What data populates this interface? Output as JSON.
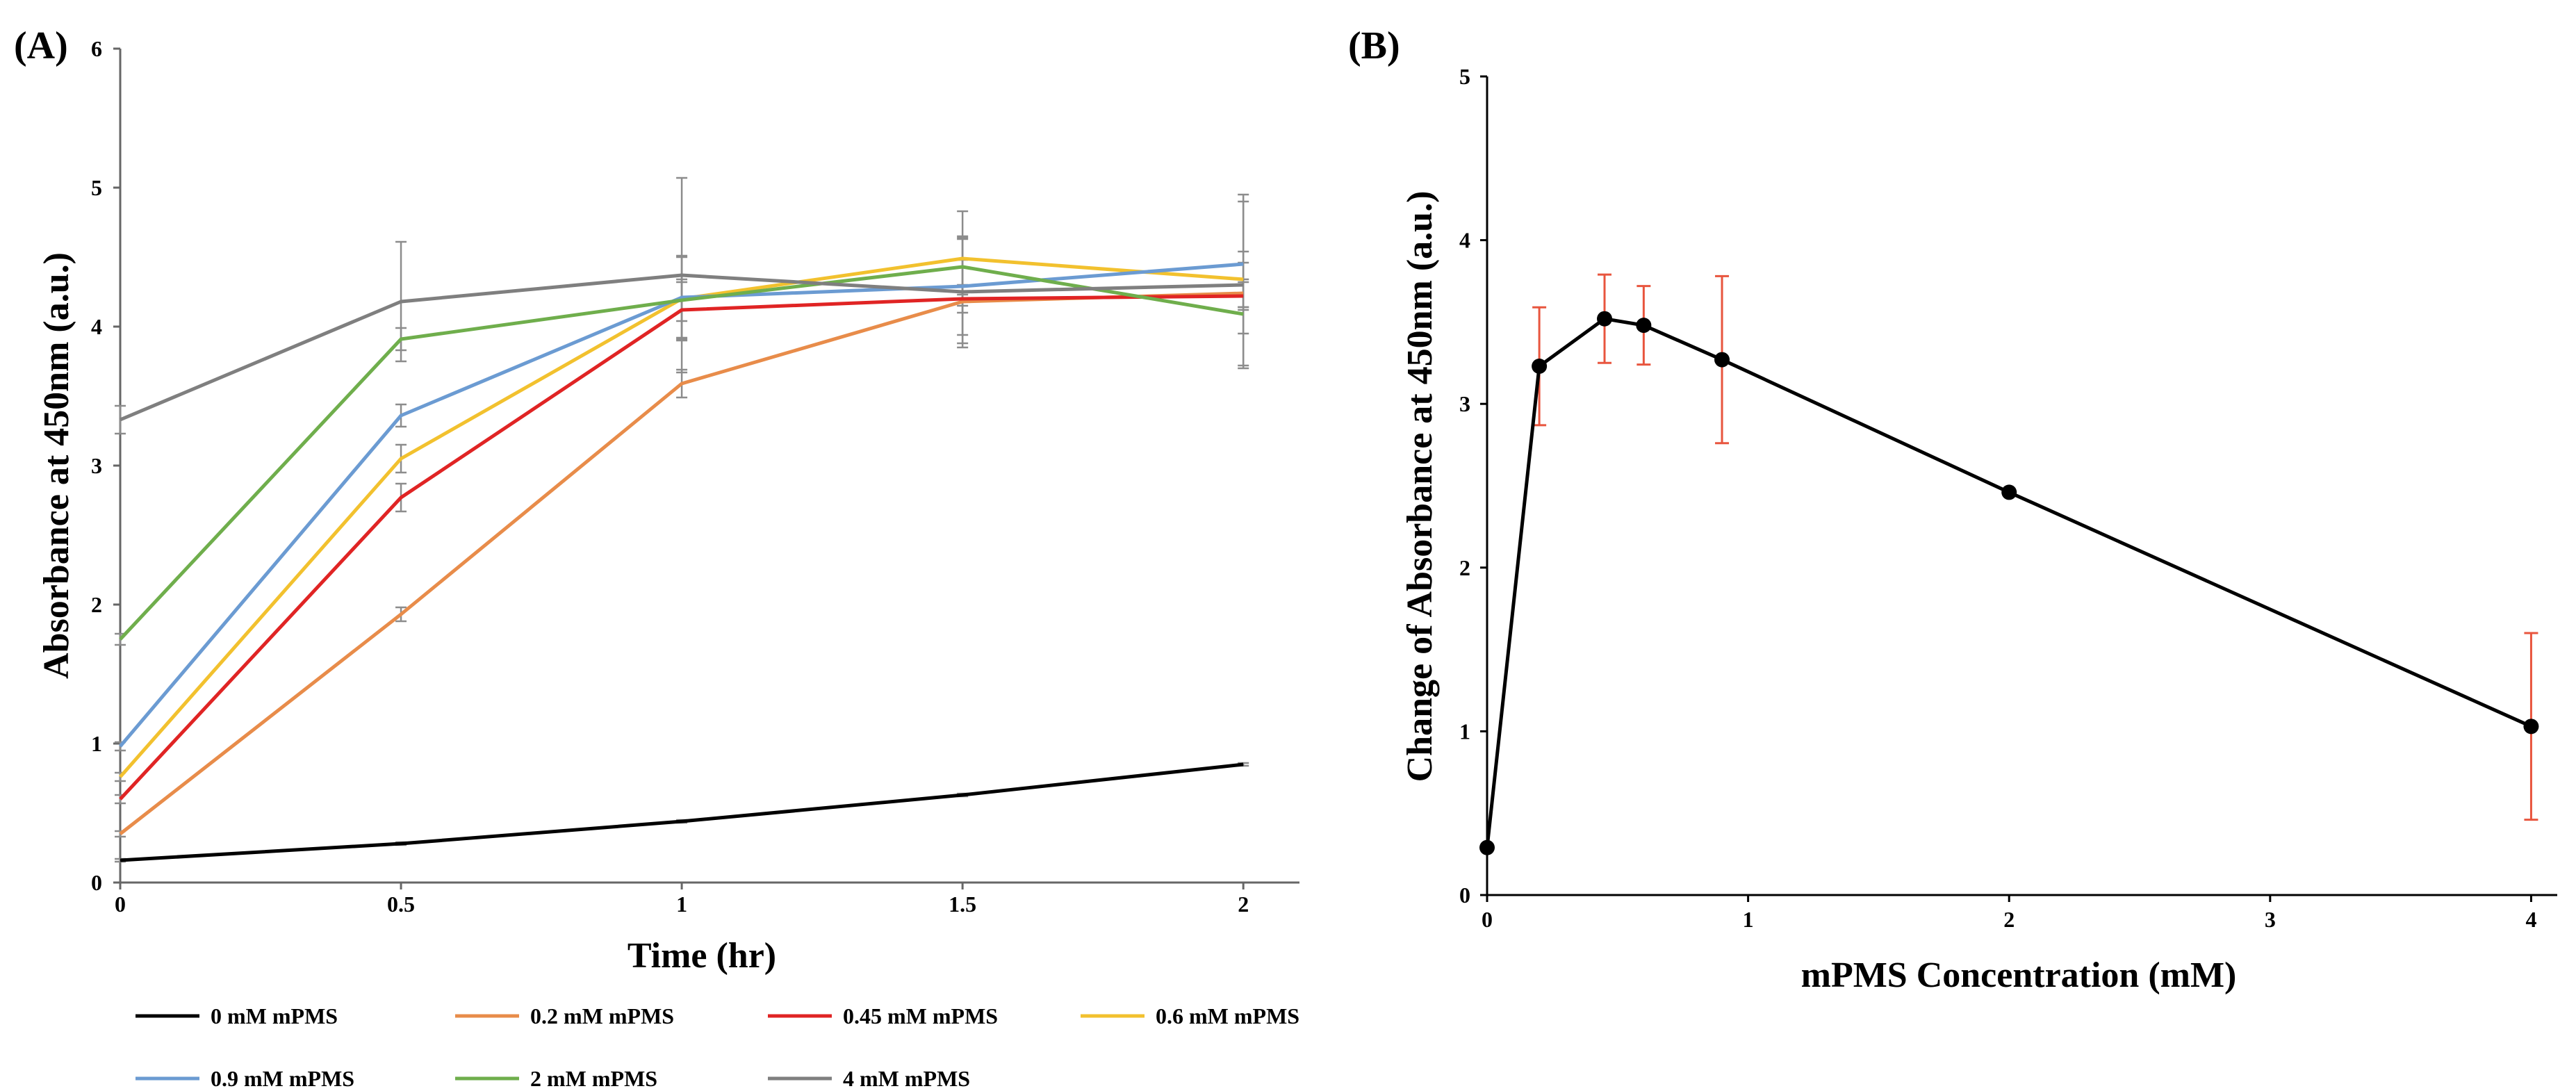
{
  "chart_data": [
    {
      "panel_label": "(A)",
      "type": "line",
      "xlabel": "Time (hr)",
      "ylabel": "Absorbance at 450nm (a.u.)",
      "x": [
        0,
        0.5,
        1,
        1.5,
        2
      ],
      "x_tick_labels": [
        "0",
        "0.5",
        "1",
        "1.5",
        "2"
      ],
      "xlim": [
        0,
        2.1
      ],
      "ylim": [
        0,
        6
      ],
      "y_ticks": [
        0,
        1,
        2,
        3,
        4,
        5,
        6
      ],
      "y_tick_labels": [
        "0",
        "1",
        "2",
        "3",
        "4",
        "5",
        "6"
      ],
      "grid": false,
      "legend_position": "bottom",
      "series": [
        {
          "name": "0 mM mPMS",
          "color": "#000000",
          "values": [
            0.16,
            0.28,
            0.44,
            0.63,
            0.85
          ],
          "errors": [
            0.01,
            0.01,
            0.01,
            0.01,
            0.01
          ]
        },
        {
          "name": "0.2 mM mPMS",
          "color": "#e88c4a",
          "values": [
            0.35,
            1.93,
            3.59,
            4.18,
            4.24
          ],
          "errors": [
            0.02,
            0.05,
            0.1,
            0.3,
            0.1
          ]
        },
        {
          "name": "0.45 mM mPMS",
          "color": "#e02424",
          "values": [
            0.6,
            2.77,
            4.12,
            4.2,
            4.22
          ],
          "errors": [
            0.03,
            0.1,
            0.2,
            0.1,
            0.1
          ]
        },
        {
          "name": "0.6 mM mPMS",
          "color": "#f2c12e",
          "values": [
            0.76,
            3.05,
            4.2,
            4.49,
            4.34
          ],
          "errors": [
            0.03,
            0.1,
            0.3,
            0.34,
            0.2
          ]
        },
        {
          "name": "0.9 mM mPMS",
          "color": "#6b9bd2",
          "values": [
            0.98,
            3.36,
            4.21,
            4.29,
            4.45
          ],
          "errors": [
            0.03,
            0.08,
            0.3,
            0.35,
            0.5
          ]
        },
        {
          "name": "2 mM mPMS",
          "color": "#6fae4c",
          "values": [
            1.75,
            3.91,
            4.19,
            4.43,
            4.09
          ],
          "errors": [
            0.04,
            0.08,
            0.15,
            0.2,
            0.37
          ]
        },
        {
          "name": "4 mM mPMS",
          "color": "#7f7f7f",
          "values": [
            3.33,
            4.18,
            4.37,
            4.25,
            4.3
          ],
          "errors": [
            0.1,
            0.43,
            0.7,
            0.4,
            0.6
          ]
        }
      ]
    },
    {
      "panel_label": "(B)",
      "type": "line",
      "xlabel": "mPMS Concentration (mM)",
      "ylabel": "Change of Absorbance at 450nm (a.u.)",
      "x": [
        0,
        0.2,
        0.45,
        0.6,
        0.9,
        2,
        4
      ],
      "values": [
        0.29,
        3.23,
        3.52,
        3.48,
        3.27,
        2.46,
        1.03
      ],
      "errors": [
        0,
        0.36,
        0.27,
        0.24,
        0.51,
        0,
        0.57
      ],
      "xlim": [
        0,
        4.1
      ],
      "ylim": [
        0,
        5
      ],
      "x_ticks": [
        0,
        1,
        2,
        3,
        4
      ],
      "x_tick_labels": [
        "0",
        "1",
        "2",
        "3",
        "4"
      ],
      "y_ticks": [
        0,
        1,
        2,
        3,
        4,
        5
      ],
      "y_tick_labels": [
        "0",
        "1",
        "2",
        "3",
        "4",
        "5"
      ],
      "line_color": "#000000",
      "error_color": "#e8553e",
      "grid": false
    }
  ]
}
